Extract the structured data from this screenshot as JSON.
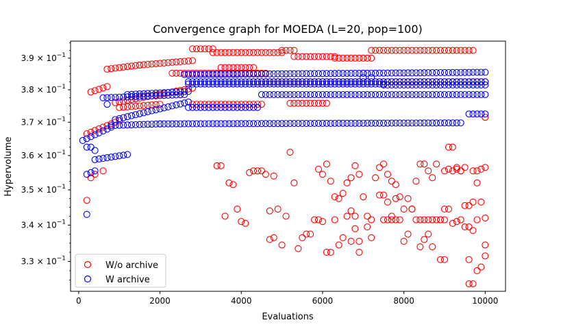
{
  "chart_data": {
    "type": "scatter",
    "title": "Convergence graph for MOEDA (L=20, pop=100)",
    "xlabel": "Evaluations",
    "ylabel": "Hypervolume",
    "xlim": [
      -200,
      10500
    ],
    "ylim": [
      0.322,
      0.3955
    ],
    "yscale": "log",
    "x_ticks": [
      {
        "value": 0,
        "label": "0"
      },
      {
        "value": 2000,
        "label": "2000"
      },
      {
        "value": 4000,
        "label": "4000"
      },
      {
        "value": 6000,
        "label": "6000"
      },
      {
        "value": 8000,
        "label": "8000"
      },
      {
        "value": 10000,
        "label": "10000"
      }
    ],
    "y_ticks": [
      {
        "value": 0.33,
        "mantissa": "3.3",
        "base": "10",
        "exponent": "−1"
      },
      {
        "value": 0.34,
        "mantissa": "3.4",
        "base": "10",
        "exponent": "−1"
      },
      {
        "value": 0.35,
        "mantissa": "3.5",
        "base": "10",
        "exponent": "−1"
      },
      {
        "value": 0.36,
        "mantissa": "3.6",
        "base": "10",
        "exponent": "−1"
      },
      {
        "value": 0.37,
        "mantissa": "3.7",
        "base": "10",
        "exponent": "−1"
      },
      {
        "value": 0.38,
        "mantissa": "3.8",
        "base": "10",
        "exponent": "−1"
      },
      {
        "value": 0.39,
        "mantissa": "3.9",
        "base": "10",
        "exponent": "−1"
      }
    ],
    "marker": "open-circle",
    "grid": false,
    "legend_position": "lower-left",
    "series": [
      {
        "name": "W/o archive",
        "color": "#ff0000",
        "bands": [
          {
            "x_start": 700,
            "x_end": 1500,
            "y_start": 0.3865,
            "y_end": 0.3878,
            "step": 100
          },
          {
            "x_start": 1500,
            "x_end": 2800,
            "y_start": 0.3878,
            "y_end": 0.3892,
            "step": 100
          },
          {
            "x_start": 2800,
            "x_end": 3300,
            "y_start": 0.393,
            "y_end": 0.393,
            "step": 100
          },
          {
            "x_start": 3300,
            "x_end": 5000,
            "y_start": 0.3918,
            "y_end": 0.3918,
            "step": 100
          },
          {
            "x_start": 5000,
            "x_end": 5300,
            "y_start": 0.3925,
            "y_end": 0.3925,
            "step": 100
          },
          {
            "x_start": 5300,
            "x_end": 6300,
            "y_start": 0.3905,
            "y_end": 0.3905,
            "step": 100
          },
          {
            "x_start": 6300,
            "x_end": 7200,
            "y_start": 0.39,
            "y_end": 0.39,
            "step": 100
          },
          {
            "x_start": 7200,
            "x_end": 9700,
            "y_start": 0.3925,
            "y_end": 0.3925,
            "step": 100
          },
          {
            "x_start": 2300,
            "x_end": 4600,
            "y_start": 0.3852,
            "y_end": 0.3852,
            "step": 100
          },
          {
            "x_start": 3500,
            "x_end": 4300,
            "y_start": 0.387,
            "y_end": 0.387,
            "step": 100
          },
          {
            "x_start": 4300,
            "x_end": 10000,
            "y_start": 0.3825,
            "y_end": 0.3825,
            "step": 100
          },
          {
            "x_start": 300,
            "x_end": 700,
            "y_start": 0.3793,
            "y_end": 0.381,
            "step": 100
          },
          {
            "x_start": 900,
            "x_end": 2800,
            "y_start": 0.376,
            "y_end": 0.3805,
            "step": 100
          },
          {
            "x_start": 2800,
            "x_end": 4500,
            "y_start": 0.3755,
            "y_end": 0.3755,
            "step": 100
          },
          {
            "x_start": 5200,
            "x_end": 6100,
            "y_start": 0.3758,
            "y_end": 0.3758,
            "step": 100
          },
          {
            "x_start": 200,
            "x_end": 1000,
            "y_start": 0.3665,
            "y_end": 0.3705,
            "step": 100
          },
          {
            "x_start": 1000,
            "x_end": 2000,
            "y_start": 0.3745,
            "y_end": 0.3755,
            "step": 100
          }
        ],
        "points": [
          [
            200,
            0.347
          ],
          [
            300,
            0.3535
          ],
          [
            400,
            0.3545
          ],
          [
            600,
            0.3555
          ],
          [
            3400,
            0.357
          ],
          [
            3500,
            0.357
          ],
          [
            3600,
            0.3425
          ],
          [
            3700,
            0.352
          ],
          [
            3800,
            0.3515
          ],
          [
            3900,
            0.3445
          ],
          [
            4000,
            0.341
          ],
          [
            4100,
            0.3405
          ],
          [
            4200,
            0.355
          ],
          [
            4300,
            0.3555
          ],
          [
            4400,
            0.3555
          ],
          [
            4500,
            0.3555
          ],
          [
            4600,
            0.3545
          ],
          [
            4700,
            0.344
          ],
          [
            4800,
            0.354
          ],
          [
            4700,
            0.336
          ],
          [
            4800,
            0.3365
          ],
          [
            4900,
            0.3445
          ],
          [
            5000,
            0.3345
          ],
          [
            5100,
            0.3425
          ],
          [
            5200,
            0.361
          ],
          [
            5300,
            0.352
          ],
          [
            5400,
            0.3335
          ],
          [
            5500,
            0.3365
          ],
          [
            5600,
            0.3375
          ],
          [
            5700,
            0.3375
          ],
          [
            5800,
            0.3415
          ],
          [
            5900,
            0.3415
          ],
          [
            6000,
            0.3545
          ],
          [
            6100,
            0.3575
          ],
          [
            6200,
            0.3525
          ],
          [
            6300,
            0.348
          ],
          [
            6400,
            0.3475
          ],
          [
            6500,
            0.349
          ],
          [
            6600,
            0.352
          ],
          [
            6700,
            0.3535
          ],
          [
            6800,
            0.357
          ],
          [
            6900,
            0.3545
          ],
          [
            5900,
            0.356
          ],
          [
            6000,
            0.341
          ],
          [
            6100,
            0.3325
          ],
          [
            6200,
            0.3325
          ],
          [
            6300,
            0.3415
          ],
          [
            6400,
            0.3345
          ],
          [
            6500,
            0.3365
          ],
          [
            6600,
            0.3425
          ],
          [
            6700,
            0.344
          ],
          [
            6800,
            0.339
          ],
          [
            6900,
            0.3355
          ],
          [
            7000,
            0.348
          ],
          [
            7100,
            0.3395
          ],
          [
            7200,
            0.3365
          ],
          [
            6700,
            0.3355
          ],
          [
            6800,
            0.3425
          ],
          [
            6900,
            0.3325
          ],
          [
            7300,
            0.3535
          ],
          [
            7400,
            0.3565
          ],
          [
            7500,
            0.3575
          ],
          [
            7600,
            0.3545
          ],
          [
            7700,
            0.3525
          ],
          [
            7800,
            0.3515
          ],
          [
            7900,
            0.348
          ],
          [
            8000,
            0.3355
          ],
          [
            8100,
            0.3375
          ],
          [
            8200,
            0.3445
          ],
          [
            8300,
            0.3525
          ],
          [
            8400,
            0.3575
          ],
          [
            8500,
            0.3575
          ],
          [
            8600,
            0.3555
          ],
          [
            8700,
            0.3535
          ],
          [
            8800,
            0.3575
          ],
          [
            8900,
            0.3305
          ],
          [
            9000,
            0.3305
          ],
          [
            9100,
            0.3625
          ],
          [
            9200,
            0.3625
          ],
          [
            9300,
            0.3565
          ],
          [
            9400,
            0.3555
          ],
          [
            9500,
            0.3565
          ],
          [
            9600,
            0.3305
          ],
          [
            9700,
            0.324
          ],
          [
            9800,
            0.3275
          ],
          [
            9900,
            0.3285
          ],
          [
            10000,
            0.3565
          ],
          [
            8400,
            0.334
          ],
          [
            8500,
            0.336
          ],
          [
            8600,
            0.3375
          ],
          [
            8700,
            0.334
          ],
          [
            8900,
            0.3415
          ],
          [
            9000,
            0.3445
          ],
          [
            9100,
            0.3445
          ],
          [
            9200,
            0.3405
          ],
          [
            9300,
            0.341
          ],
          [
            9400,
            0.3415
          ],
          [
            9500,
            0.3455
          ],
          [
            9600,
            0.3455
          ],
          [
            9700,
            0.3465
          ],
          [
            9800,
            0.3415
          ],
          [
            9900,
            0.3465
          ],
          [
            10000,
            0.342
          ],
          [
            9000,
            0.3555
          ],
          [
            9100,
            0.356
          ],
          [
            9200,
            0.3555
          ],
          [
            9300,
            0.356
          ],
          [
            9400,
            0.3555
          ],
          [
            9500,
            0.3395
          ],
          [
            9600,
            0.3395
          ],
          [
            9700,
            0.3385
          ],
          [
            9800,
            0.352
          ],
          [
            10000,
            0.3345
          ],
          [
            10000,
            0.3315
          ],
          [
            9600,
            0.324
          ],
          [
            9700,
            0.3555
          ],
          [
            9800,
            0.3555
          ],
          [
            9900,
            0.356
          ],
          [
            8000,
            0.3445
          ],
          [
            8100,
            0.3475
          ],
          [
            8200,
            0.3445
          ],
          [
            8300,
            0.3415
          ],
          [
            8400,
            0.3415
          ],
          [
            8500,
            0.3415
          ],
          [
            8600,
            0.3415
          ],
          [
            8700,
            0.3415
          ],
          [
            8800,
            0.3415
          ],
          [
            8900,
            0.3415
          ],
          [
            9000,
            0.3415
          ],
          [
            7400,
            0.3485
          ],
          [
            7500,
            0.3485
          ],
          [
            7600,
            0.3465
          ],
          [
            7700,
            0.3415
          ],
          [
            7800,
            0.3475
          ],
          [
            7900,
            0.3415
          ],
          [
            7800,
            0.3415
          ],
          [
            7700,
            0.3425
          ],
          [
            7600,
            0.3415
          ],
          [
            7500,
            0.3415
          ],
          [
            10000,
            0.3715
          ],
          [
            7100,
            0.3425
          ],
          [
            7200,
            0.3415
          ]
        ]
      },
      {
        "name": "W archive",
        "color": "#0000ff",
        "bands": [
          {
            "x_start": 600,
            "x_end": 2600,
            "y_start": 0.3775,
            "y_end": 0.3785,
            "step": 100
          },
          {
            "x_start": 1200,
            "x_end": 2700,
            "y_start": 0.3785,
            "y_end": 0.3795,
            "step": 100
          },
          {
            "x_start": 2600,
            "x_end": 7000,
            "y_start": 0.3848,
            "y_end": 0.3852,
            "step": 100
          },
          {
            "x_start": 7000,
            "x_end": 10000,
            "y_start": 0.3852,
            "y_end": 0.3855,
            "step": 100
          },
          {
            "x_start": 2700,
            "x_end": 7500,
            "y_start": 0.3818,
            "y_end": 0.3818,
            "step": 100
          },
          {
            "x_start": 7500,
            "x_end": 10000,
            "y_start": 0.3815,
            "y_end": 0.3815,
            "step": 100
          },
          {
            "x_start": 2700,
            "x_end": 10000,
            "y_start": 0.3825,
            "y_end": 0.3825,
            "step": 100
          },
          {
            "x_start": 4500,
            "x_end": 10000,
            "y_start": 0.3785,
            "y_end": 0.3785,
            "step": 100
          },
          {
            "x_start": 900,
            "x_end": 2700,
            "y_start": 0.3708,
            "y_end": 0.3762,
            "step": 100
          },
          {
            "x_start": 2700,
            "x_end": 4400,
            "y_start": 0.3745,
            "y_end": 0.3745,
            "step": 100
          },
          {
            "x_start": 100,
            "x_end": 800,
            "y_start": 0.3645,
            "y_end": 0.3685,
            "step": 100
          },
          {
            "x_start": 800,
            "x_end": 2000,
            "y_start": 0.369,
            "y_end": 0.3695,
            "step": 100
          },
          {
            "x_start": 2000,
            "x_end": 9400,
            "y_start": 0.3695,
            "y_end": 0.3698,
            "step": 100
          },
          {
            "x_start": 400,
            "x_end": 1200,
            "y_start": 0.3588,
            "y_end": 0.3603,
            "step": 100
          },
          {
            "x_start": 9600,
            "x_end": 10000,
            "y_start": 0.3725,
            "y_end": 0.3725,
            "step": 100
          }
        ],
        "points": [
          [
            200,
            0.343
          ],
          [
            200,
            0.3545
          ],
          [
            300,
            0.355
          ],
          [
            400,
            0.3555
          ],
          [
            200,
            0.3625
          ],
          [
            300,
            0.3625
          ],
          [
            400,
            0.3615
          ],
          [
            700,
            0.3755
          ],
          [
            7000,
            0.3838
          ],
          [
            7200,
            0.3838
          ]
        ]
      }
    ]
  }
}
